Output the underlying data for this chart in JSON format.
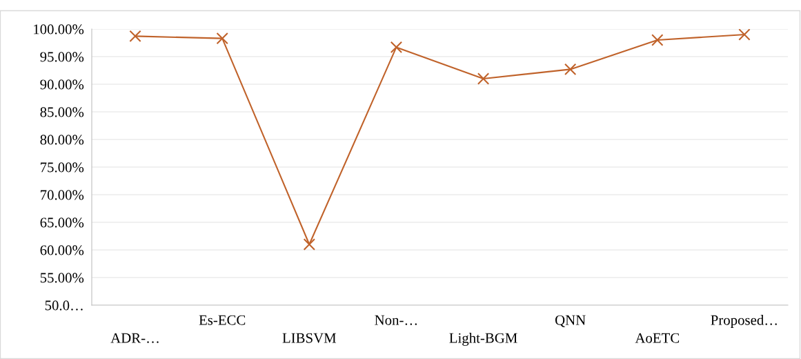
{
  "chart_data": {
    "type": "line",
    "categories": [
      "ADR-…",
      "Es-ECC",
      "LIBSVM",
      "Non-…",
      "Light-BGM",
      "QNN",
      "AoETC",
      "Proposed…"
    ],
    "series": [
      {
        "color": "#c0622a",
        "values": [
          98.7,
          98.3,
          61.0,
          96.7,
          91.0,
          92.7,
          98.0,
          99.0
        ]
      }
    ],
    "ylim": [
      50,
      100
    ],
    "yticks": [
      {
        "value": 50,
        "label": "50.0…"
      },
      {
        "value": 55,
        "label": "55.00%"
      },
      {
        "value": 60,
        "label": "60.00%"
      },
      {
        "value": 65,
        "label": "65.00%"
      },
      {
        "value": 70,
        "label": "70.00%"
      },
      {
        "value": 75,
        "label": "75.00%"
      },
      {
        "value": 80,
        "label": "80.00%"
      },
      {
        "value": 85,
        "label": "85.00%"
      },
      {
        "value": 90,
        "label": "90.00%"
      },
      {
        "value": 95,
        "label": "95.00%"
      },
      {
        "value": 100,
        "label": "100.00%"
      }
    ],
    "grid": "y",
    "marker": "cross",
    "line_style": "solid"
  }
}
